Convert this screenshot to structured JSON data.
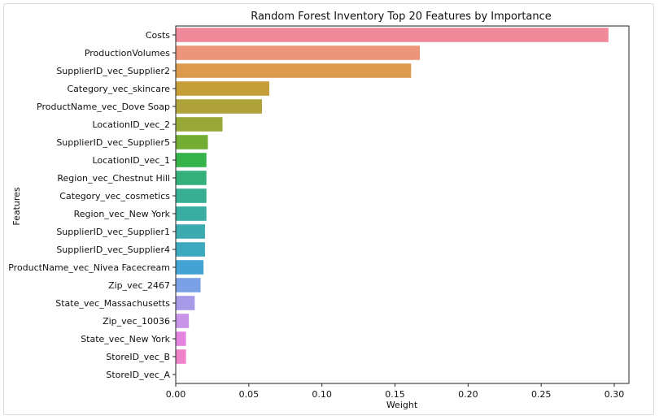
{
  "chart_data": {
    "type": "bar",
    "orientation": "horizontal",
    "title": "Random Forest Inventory Top 20 Features by Importance",
    "xlabel": "Weight",
    "ylabel": "Features",
    "xlim": [
      0,
      0.31
    ],
    "xticks": [
      "0.00",
      "0.05",
      "0.10",
      "0.15",
      "0.20",
      "0.25",
      "0.30"
    ],
    "grid": false,
    "categories": [
      "Costs",
      "ProductionVolumes",
      "SupplierID_vec_Supplier2",
      "Category_vec_skincare",
      "ProductName_vec_Dove Soap",
      "LocationID_vec_2",
      "SupplierID_vec_Supplier5",
      "LocationID_vec_1",
      "Region_vec_Chestnut Hill",
      "Category_vec_cosmetics",
      "Region_vec_New York",
      "SupplierID_vec_Supplier1",
      "SupplierID_vec_Supplier4",
      "ProductName_vec_Nivea Facecream",
      "Zip_vec_2467",
      "State_vec_Massachusetts",
      "Zip_vec_10036",
      "State_vec_New York",
      "StoreID_vec_B",
      "StoreID_vec_A"
    ],
    "values": [
      0.296,
      0.167,
      0.161,
      0.064,
      0.059,
      0.032,
      0.022,
      0.021,
      0.021,
      0.021,
      0.021,
      0.02,
      0.02,
      0.019,
      0.017,
      0.013,
      0.009,
      0.007,
      0.007,
      0.0
    ],
    "colors": [
      "#f08a9b",
      "#ec957a",
      "#dc9a4c",
      "#c69e38",
      "#b1a33b",
      "#97a837",
      "#74ad33",
      "#35b249",
      "#36b07b",
      "#38ae93",
      "#3aada2",
      "#3cabb0",
      "#3da9bf",
      "#43a4d4",
      "#7aa0e6",
      "#a79ae9",
      "#c993e8",
      "#e584e0",
      "#f082c9",
      "#f28ab2"
    ]
  }
}
